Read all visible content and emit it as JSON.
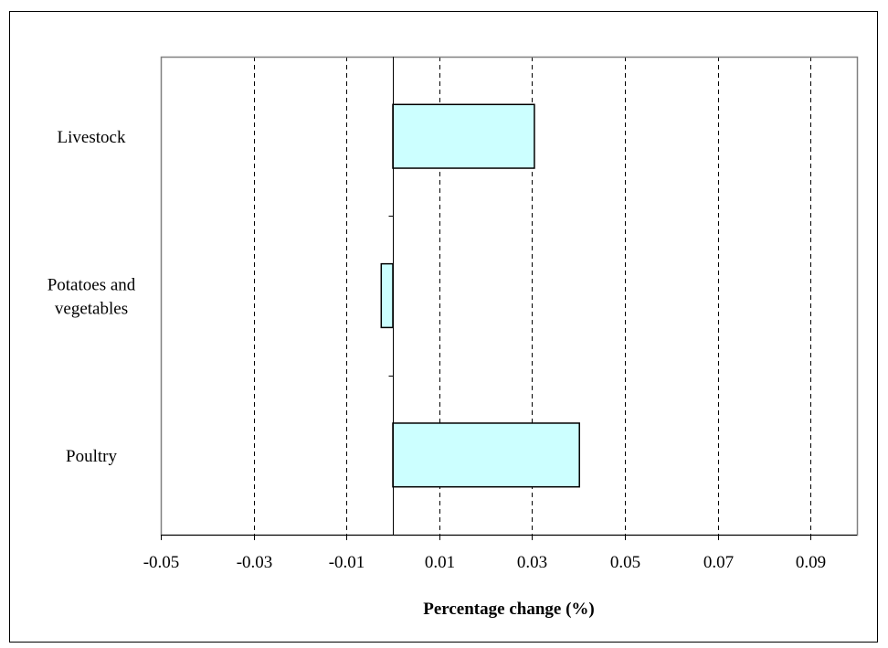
{
  "chart_data": {
    "type": "bar",
    "orientation": "horizontal",
    "categories": [
      [
        "Livestock"
      ],
      [
        "Potatoes and",
        "vegetables"
      ],
      [
        "Poultry"
      ]
    ],
    "values": [
      0.0305,
      -0.0025,
      0.0402
    ],
    "xlabel": "Percentage change (%)",
    "xlim": [
      -0.05,
      0.1
    ],
    "xticks": [
      "-0.05",
      "-0.03",
      "-0.01",
      "0.01",
      "0.03",
      "0.05",
      "0.07",
      "0.09"
    ],
    "xtick_values": [
      -0.05,
      -0.03,
      -0.01,
      0.01,
      0.03,
      0.05,
      0.07,
      0.09
    ],
    "grid": "vertical-dashed",
    "colors": {
      "bar_fill": "#ccffff",
      "bar_stroke": "#000000",
      "plot_border": "#808080",
      "frame_border": "#000000"
    }
  }
}
